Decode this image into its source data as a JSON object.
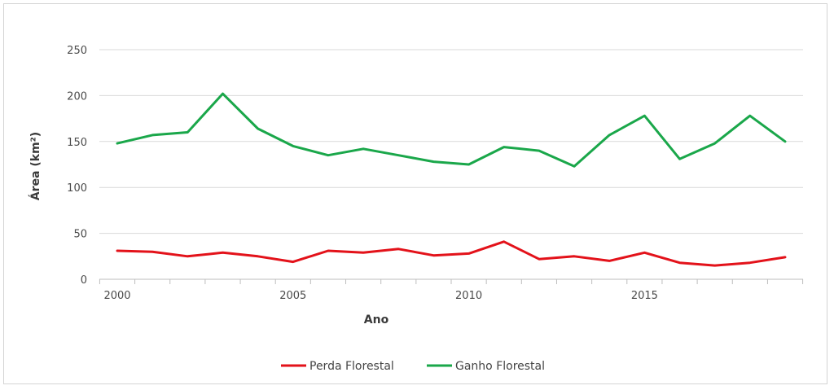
{
  "chart_data": {
    "type": "line",
    "title": "",
    "xlabel": "Ano",
    "ylabel": "Área (km²)",
    "x": [
      2000,
      2001,
      2002,
      2003,
      2004,
      2005,
      2006,
      2007,
      2008,
      2009,
      2010,
      2011,
      2012,
      2013,
      2014,
      2015,
      2016,
      2017,
      2018,
      2019
    ],
    "xlim": [
      2000,
      2019
    ],
    "x_ticks": [
      2000,
      2005,
      2010,
      2015
    ],
    "ylim": [
      0,
      250
    ],
    "y_ticks": [
      0,
      50,
      100,
      150,
      200,
      250
    ],
    "grid": "horizontal",
    "legend_position": "bottom",
    "series": [
      {
        "name": "Perda Florestal",
        "color": "#e3121a",
        "values": [
          31,
          30,
          25,
          29,
          25,
          19,
          31,
          29,
          33,
          26,
          28,
          41,
          22,
          25,
          20,
          29,
          18,
          15,
          18,
          24
        ]
      },
      {
        "name": "Ganho Florestal",
        "color": "#1aa74a",
        "values": [
          148,
          157,
          160,
          202,
          164,
          145,
          135,
          142,
          135,
          128,
          125,
          144,
          140,
          123,
          157,
          178,
          131,
          148,
          178,
          150
        ]
      }
    ]
  }
}
